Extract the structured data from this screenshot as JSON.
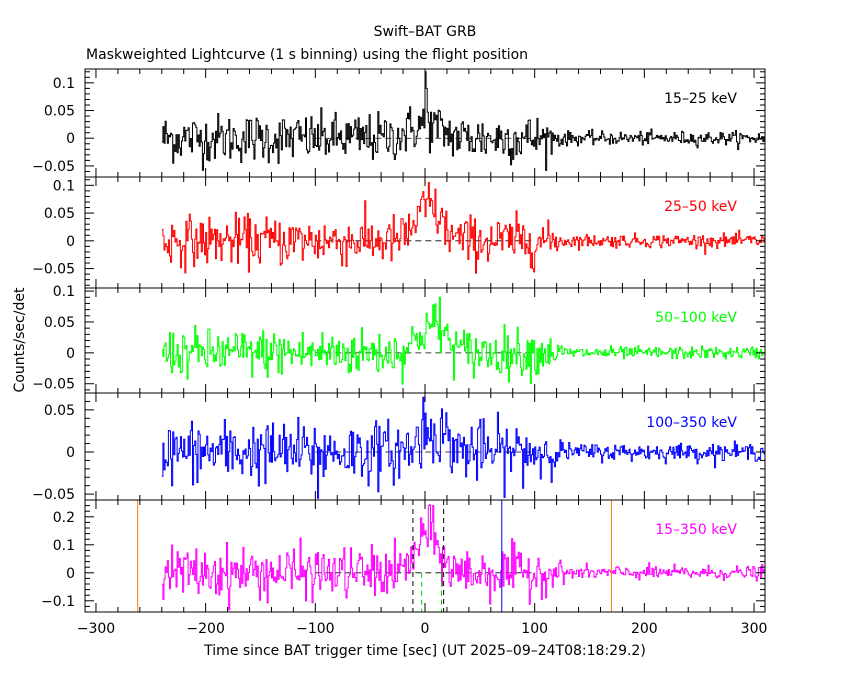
{
  "title": "Swift–BAT GRB",
  "subtitle": "Maskweighted Lightcurve (1 s binning) using the flight position",
  "xlabel": "Time since BAT trigger time [sec] (UT 2025–09–24T08:18:29.2)",
  "ylabel": "Counts/sec/det",
  "chart_data": {
    "type": "line",
    "x_range": [
      -310,
      310
    ],
    "x_ticks": [
      -300,
      -200,
      -100,
      0,
      100,
      200,
      300
    ],
    "x_tick_labels": [
      "−300",
      "−200",
      "−100",
      "0",
      "100",
      "200",
      "300"
    ],
    "data_time_range": [
      -240,
      310
    ],
    "bin_seconds": 1,
    "panels": [
      {
        "band": "15–25 keV",
        "color": "#000000",
        "ylim": [
          -0.07,
          0.125
        ],
        "yticks": [
          -0.05,
          0,
          0.05,
          0.1
        ],
        "ytick_labels": [
          "−0.05",
          "0",
          "0.05",
          "0.1"
        ],
        "early_sigma": 0.022,
        "late_sigma": 0.006,
        "bump": {
          "peak": 0.025,
          "center": 0,
          "width": 14
        },
        "spikes": [
          [
            0,
            0.12
          ],
          [
            1,
            0.09
          ]
        ]
      },
      {
        "band": "25–50 keV",
        "color": "#ff0000",
        "ylim": [
          -0.085,
          0.115
        ],
        "yticks": [
          -0.05,
          0,
          0.05,
          0.1
        ],
        "ytick_labels": [
          "−0.05",
          "0",
          "0.05",
          "0.1"
        ],
        "early_sigma": 0.022,
        "late_sigma": 0.006,
        "bump": {
          "peak": 0.06,
          "center": 3,
          "width": 11
        },
        "spikes": [
          [
            3,
            0.105
          ]
        ]
      },
      {
        "band": "50–100 keV",
        "color": "#00ff00",
        "ylim": [
          -0.065,
          0.105
        ],
        "yticks": [
          -0.05,
          0,
          0.05,
          0.1
        ],
        "ytick_labels": [
          "−0.05",
          "0",
          "0.05",
          "0.1"
        ],
        "early_sigma": 0.019,
        "late_sigma": 0.005,
        "bump": {
          "peak": 0.045,
          "center": 6,
          "width": 12
        },
        "spikes": [
          [
            13,
            0.09
          ]
        ]
      },
      {
        "band": "100–350 keV",
        "color": "#0000ff",
        "ylim": [
          -0.057,
          0.07
        ],
        "yticks": [
          -0.05,
          0,
          0.05
        ],
        "ytick_labels": [
          "−0.05",
          "0",
          "0.05"
        ],
        "early_sigma": 0.018,
        "late_sigma": 0.005,
        "bump": {
          "peak": 0.025,
          "center": 8,
          "width": 12
        },
        "spikes": [
          [
            -2,
            0.065
          ],
          [
            -98,
            -0.055
          ]
        ]
      },
      {
        "band": "15–350 keV",
        "color": "#ff00ff",
        "ylim": [
          -0.14,
          0.26
        ],
        "yticks": [
          -0.1,
          0,
          0.1,
          0.2
        ],
        "ytick_labels": [
          "−0.1",
          "0",
          "0.1",
          "0.2"
        ],
        "early_sigma": 0.045,
        "late_sigma": 0.012,
        "bump": {
          "peak": 0.14,
          "center": 2,
          "width": 10
        },
        "spikes": [
          [
            3,
            0.24
          ]
        ],
        "markers": [
          {
            "t": -262,
            "color": "#ff8000",
            "style": "solid",
            "span": "full"
          },
          {
            "t": 170,
            "color": "#ff8000",
            "style": "solid",
            "span": "full"
          },
          {
            "t": 70,
            "color": "#0000ff",
            "style": "solid",
            "span": "full"
          },
          {
            "t": -11,
            "color": "#000000",
            "style": "dashed",
            "span": "full"
          },
          {
            "t": 17,
            "color": "#000000",
            "style": "dashed",
            "span": "full"
          },
          {
            "t": -3,
            "color": "#00cc00",
            "style": "dashed",
            "span": "bottom"
          },
          {
            "t": 15,
            "color": "#00cc00",
            "style": "dashed",
            "span": "bottom"
          }
        ]
      }
    ]
  }
}
